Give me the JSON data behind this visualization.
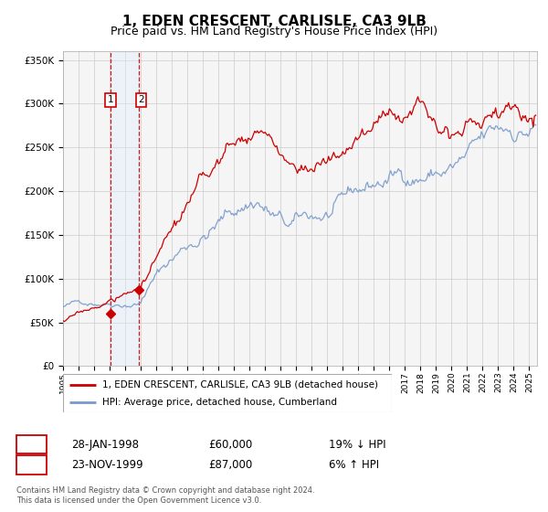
{
  "title": "1, EDEN CRESCENT, CARLISLE, CA3 9LB",
  "subtitle": "Price paid vs. HM Land Registry's House Price Index (HPI)",
  "title_fontsize": 11,
  "subtitle_fontsize": 9,
  "legend_line1": "1, EDEN CRESCENT, CARLISLE, CA3 9LB (detached house)",
  "legend_line2": "HPI: Average price, detached house, Cumberland",
  "sale1_label": "1",
  "sale1_date": "28-JAN-1998",
  "sale1_price": "£60,000",
  "sale1_hpi": "19% ↓ HPI",
  "sale2_label": "2",
  "sale2_date": "23-NOV-1999",
  "sale2_price": "£87,000",
  "sale2_hpi": "6% ↑ HPI",
  "footer_line1": "Contains HM Land Registry data © Crown copyright and database right 2024.",
  "footer_line2": "This data is licensed under the Open Government Licence v3.0.",
  "red_color": "#cc0000",
  "blue_color": "#7799cc",
  "light_blue_fill": "#ddeeff",
  "grid_color": "#cccccc",
  "background_color": "#ffffff",
  "plot_bg_color": "#f5f5f5",
  "sale1_x": 1998.07,
  "sale1_y": 60000,
  "sale2_x": 1999.9,
  "sale2_y": 87000,
  "vline1_x": 1998.07,
  "vline2_x": 1999.9,
  "xmin": 1995.0,
  "xmax": 2025.5,
  "ymin": 0,
  "ymax": 360000,
  "yticks": [
    0,
    50000,
    100000,
    150000,
    200000,
    250000,
    300000,
    350000
  ],
  "ytick_labels": [
    "£0",
    "£50K",
    "£100K",
    "£150K",
    "£200K",
    "£250K",
    "£300K",
    "£350K"
  ]
}
